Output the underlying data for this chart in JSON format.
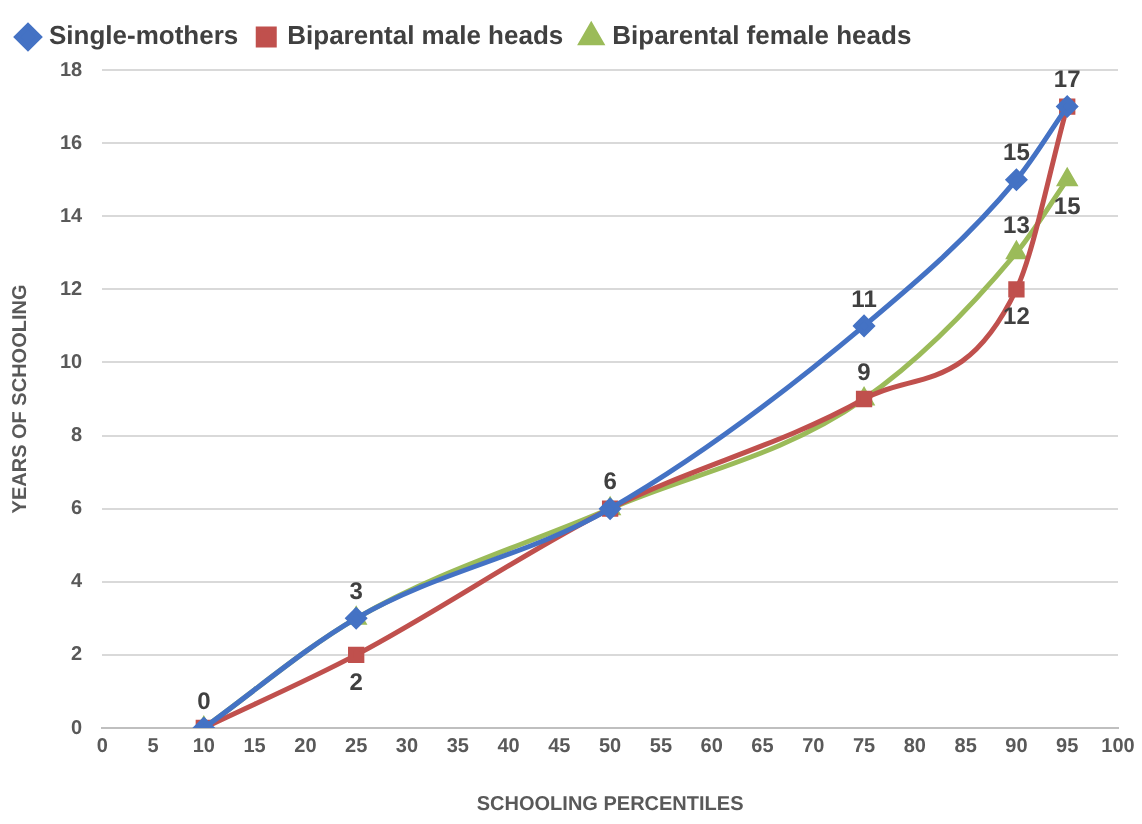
{
  "chart_data": {
    "type": "line",
    "xlabel": "SCHOOLING PERCENTILES",
    "ylabel": "YEARS OF SCHOOLING",
    "x": [
      10,
      25,
      50,
      75,
      90,
      95
    ],
    "series": [
      {
        "name": "Single-mothers",
        "color": "#4472c4",
        "marker": "diamond",
        "values": [
          0,
          3,
          6,
          11,
          15,
          17
        ],
        "value_labels": [
          null,
          null,
          null,
          "11",
          "15",
          null
        ]
      },
      {
        "name": "Biparental male heads",
        "color": "#c0504d",
        "marker": "square",
        "values": [
          0,
          2,
          6,
          9,
          12,
          17
        ],
        "value_labels": [
          "0",
          "2",
          "6",
          "9",
          "12",
          "17"
        ]
      },
      {
        "name": "Biparental female heads",
        "color": "#9bbb59",
        "marker": "triangle",
        "values": [
          0,
          3,
          6,
          9,
          13,
          15
        ],
        "value_labels": [
          null,
          "3",
          null,
          null,
          "13",
          "15"
        ]
      }
    ],
    "xlim": [
      0,
      100
    ],
    "xticks": [
      0,
      5,
      10,
      15,
      20,
      25,
      30,
      35,
      40,
      45,
      50,
      55,
      60,
      65,
      70,
      75,
      80,
      85,
      90,
      95,
      100
    ],
    "ylim": [
      0,
      18
    ],
    "yticks": [
      0,
      2,
      4,
      6,
      8,
      10,
      12,
      14,
      16,
      18
    ],
    "grid": "y",
    "legend": "top",
    "line_style": "solid"
  }
}
